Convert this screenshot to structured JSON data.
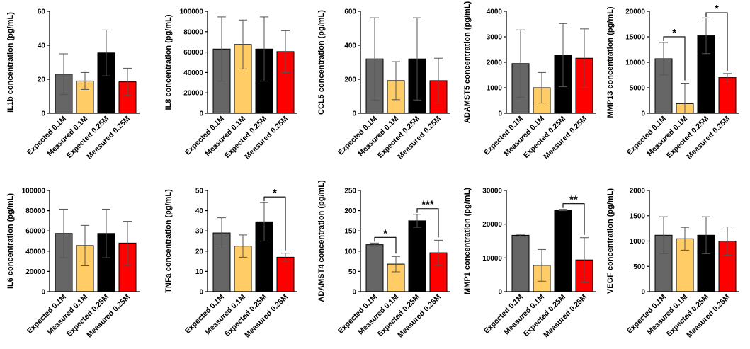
{
  "chart_data": [
    {
      "type": "bar",
      "ylabel": "IL1b concentration (pg/mL)",
      "categories": [
        "Expected 0.1M",
        "Measured 0.1M",
        "Expected 0.25M",
        "Measured 0.25M"
      ],
      "values": [
        23,
        19,
        35.5,
        18.5
      ],
      "errors": [
        12,
        5,
        13.5,
        8
      ],
      "ylim": [
        0,
        60
      ],
      "yticks": [
        "0",
        "20",
        "40",
        "60"
      ],
      "significance": []
    },
    {
      "type": "bar",
      "ylabel": "IL8 concentration (pg/mL)",
      "categories": [
        "Expected 0.1M",
        "Measured 0.1M",
        "Expected 0.25M",
        "Measured 0.25M"
      ],
      "values": [
        63000,
        67500,
        63000,
        60500
      ],
      "errors": [
        31500,
        24000,
        31500,
        20500
      ],
      "ylim": [
        0,
        100000
      ],
      "yticks": [
        "0",
        "20000",
        "40000",
        "60000",
        "80000",
        "100000"
      ],
      "significance": []
    },
    {
      "type": "bar",
      "ylabel": "CCL5 concentration (pg/mL)",
      "categories": [
        "Expected 0.1M",
        "Measured 0.1M",
        "Expected 0.25M",
        "Measured 0.25M"
      ],
      "values": [
        320,
        192,
        320,
        192
      ],
      "errors": [
        242,
        112,
        242,
        132
      ],
      "ylim": [
        0,
        600
      ],
      "yticks": [
        "0",
        "200",
        "400",
        "600"
      ],
      "significance": []
    },
    {
      "type": "bar",
      "ylabel": "ADAMST5 concentration (pg/mL)",
      "categories": [
        "Expected 0.1M",
        "Measured 0.1M",
        "Expected 0.25M",
        "Measured 0.25M"
      ],
      "values": [
        1950,
        1000,
        2280,
        2160
      ],
      "errors": [
        1320,
        600,
        1240,
        1150
      ],
      "ylim": [
        0,
        4000
      ],
      "yticks": [
        "0",
        "1000",
        "2000",
        "3000",
        "4000"
      ],
      "significance": []
    },
    {
      "type": "bar",
      "ylabel": "MMP13 concentration (pg/mL)",
      "categories": [
        "Expected 0.1M",
        "Measured 0.1M",
        "Expected 0.25M",
        "Measured 0.25M"
      ],
      "values": [
        10700,
        1900,
        15200,
        7000
      ],
      "errors": [
        3200,
        4000,
        3500,
        800
      ],
      "ylim": [
        0,
        20000
      ],
      "yticks": [
        "0",
        "5000",
        "10000",
        "15000",
        "20000"
      ],
      "significance": [
        {
          "from": 0,
          "to": 1,
          "label": "*"
        },
        {
          "from": 2,
          "to": 3,
          "label": "*"
        }
      ]
    },
    {
      "type": "bar",
      "ylabel": "IL6 concentration (pg/mL)",
      "categories": [
        "Expected 0.1M",
        "Measured 0.1M",
        "Expected 0.25M",
        "Measured 0.25M"
      ],
      "values": [
        57500,
        45500,
        57500,
        48000
      ],
      "errors": [
        24000,
        20000,
        24000,
        21500
      ],
      "ylim": [
        0,
        100000
      ],
      "yticks": [
        "0",
        "20000",
        "40000",
        "60000",
        "80000",
        "100000"
      ],
      "significance": []
    },
    {
      "type": "bar",
      "ylabel": "TNFa concentration (pg/mL)",
      "categories": [
        "Expected 0.1M",
        "Measured 0.1M",
        "Expected 0.25M",
        "Measured 0.25M"
      ],
      "values": [
        29,
        22.5,
        34.5,
        17
      ],
      "errors": [
        7.5,
        5.5,
        9.5,
        2
      ],
      "ylim": [
        0,
        50
      ],
      "yticks": [
        "0",
        "10",
        "20",
        "30",
        "40",
        "50"
      ],
      "significance": [
        {
          "from": 2,
          "to": 3,
          "label": "*"
        }
      ]
    },
    {
      "type": "bar",
      "ylabel": "ADAMST4 concentration (pg/mL)",
      "categories": [
        "Expected 0.1M",
        "Measured 0.1M",
        "Expected 0.25M",
        "Measured 0.25M"
      ],
      "values": [
        116,
        68,
        175,
        96
      ],
      "errors": [
        4,
        19,
        16,
        31
      ],
      "ylim": [
        0,
        250
      ],
      "yticks": [
        "0",
        "50",
        "100",
        "150",
        "200",
        "250"
      ],
      "significance": [
        {
          "from": 0,
          "to": 1,
          "label": "*"
        },
        {
          "from": 2,
          "to": 3,
          "label": "***"
        }
      ]
    },
    {
      "type": "bar",
      "ylabel": "MMP1 concentration (pg/mL)",
      "categories": [
        "Expected 0.1M",
        "Measured 0.1M",
        "Expected 0.25M",
        "Measured 0.25M"
      ],
      "values": [
        16700,
        7800,
        24200,
        9400
      ],
      "errors": [
        300,
        4700,
        200,
        6600
      ],
      "ylim": [
        0,
        30000
      ],
      "yticks": [
        "0",
        "10000",
        "20000",
        "30000"
      ],
      "significance": [
        {
          "from": 2,
          "to": 3,
          "label": "**"
        }
      ]
    },
    {
      "type": "bar",
      "ylabel": "VEGF concentration (pg/mL)",
      "categories": [
        "Expected 0.1M",
        "Measured 0.1M",
        "Expected 0.25M",
        "Measured 0.25M"
      ],
      "values": [
        1115,
        1045,
        1115,
        1000
      ],
      "errors": [
        365,
        225,
        365,
        280
      ],
      "ylim": [
        0,
        2000
      ],
      "yticks": [
        "0",
        "500",
        "1000",
        "1500",
        "2000"
      ],
      "significance": []
    }
  ],
  "bar_colors": [
    "#666666",
    "#ffcc66",
    "#000000",
    "#ff0000"
  ]
}
